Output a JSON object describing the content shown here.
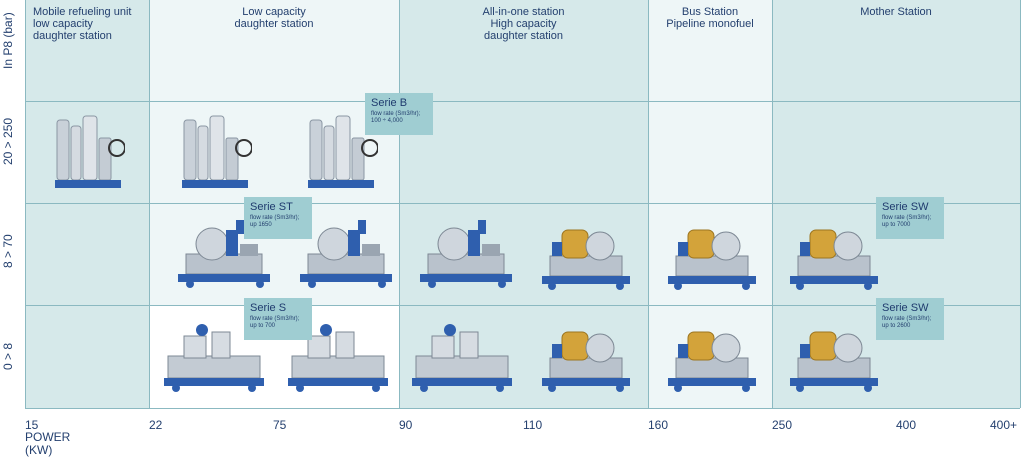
{
  "columns": [
    {
      "label": "Mobile refueling unit\nlow capacity\ndaughter station"
    },
    {
      "label": "Low capacity\ndaughter station"
    },
    {
      "label": "All-in-one station\nHigh capacity\ndaughter station"
    },
    {
      "label": "Bus Station\nPipeline monofuel"
    },
    {
      "label": "Mother Station"
    }
  ],
  "rows": [
    {
      "label": "In P8 (bar)"
    },
    {
      "label": "20 > 250"
    },
    {
      "label": "8 > 70"
    },
    {
      "label": "0 > 8"
    }
  ],
  "axis": {
    "ticks": [
      "15",
      "22",
      "75",
      "90",
      "110",
      "160",
      "250",
      "400",
      "400+"
    ],
    "title_line1": "POWER",
    "title_line2": "(KW)"
  },
  "tags": [
    {
      "title": "Serie B",
      "line1": "flow rate (Sm3/hr);",
      "line2": "100 ÷ 4,000"
    },
    {
      "title": "Serie ST",
      "line1": "flow rate (Sm3/hr);",
      "line2": "up 1650"
    },
    {
      "title": "Serie S",
      "line1": "flow rate (Sm3/hr);",
      "line2": "up to 700"
    },
    {
      "title": "Serie SW",
      "line1": "flow rate (Sm3/hr);",
      "line2": "up to 7000"
    },
    {
      "title": "Serie SW",
      "line1": "flow rate (Sm3/hr);",
      "line2": "up to 2600"
    }
  ],
  "colors": {
    "teal_dark": "#d6e9ea",
    "teal_light": "#eef6f7",
    "white": "#ffffff",
    "tag": "#9fcdd2",
    "text": "#24406f",
    "machine_steel": "#b9c2cc",
    "machine_blue": "#2f5fae",
    "machine_gold": "#d3a33a"
  }
}
